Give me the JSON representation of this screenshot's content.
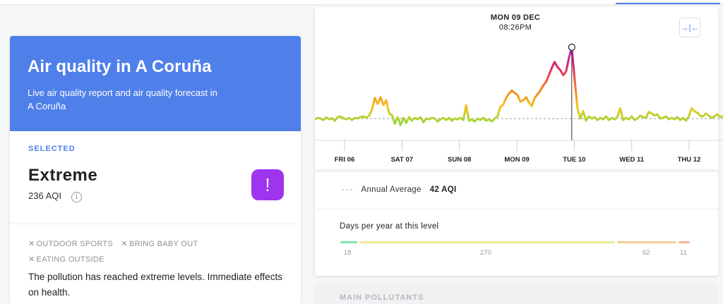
{
  "city": {
    "title": "Air quality in A Coruña",
    "subtitle": "Live air quality report and air quality forecast in A Coruña"
  },
  "selected": {
    "label": "SELECTED",
    "level": "Extreme",
    "aqi_text": "236 AQI",
    "badge_glyph": "!",
    "badge_color": "#9e34ee",
    "tags": [
      "OUTDOOR SPORTS",
      "BRING BABY OUT",
      "EATING OUTSIDE"
    ],
    "description": "The pollution has reached extreme levels. Immediate effects on health."
  },
  "chart": {
    "tooltip_day": "MON 09 DEC",
    "tooltip_time": "08:26PM",
    "collapse_icon": "collapse-horizontal-icon"
  },
  "chart_data": {
    "type": "line",
    "x_labels": [
      "FRI 06",
      "SAT 07",
      "SUN 08",
      "MON 09",
      "TUE 10",
      "WED 11",
      "THU 12"
    ],
    "annual_average": 42,
    "selected_point": {
      "label": "MON 09 DEC 08:26PM",
      "aqi": 236
    },
    "series": [
      {
        "values": [
          40,
          44,
          42,
          38,
          45,
          40,
          43,
          36,
          46,
          48,
          43,
          40,
          44,
          38,
          44,
          42,
          46,
          48,
          44,
          50,
          66,
          98,
          82,
          100,
          78,
          92,
          56,
          52,
          28,
          46,
          24,
          44,
          30,
          46,
          36,
          44,
          40,
          46,
          32,
          42,
          40,
          44,
          42,
          34,
          40,
          44,
          38,
          44,
          36,
          42,
          40,
          44,
          38,
          78,
          36,
          40,
          34,
          42,
          38,
          44,
          36,
          40,
          34,
          42,
          48,
          74,
          80,
          98,
          110,
          118,
          112,
          106,
          88,
          92,
          100,
          86,
          76,
          98,
          108,
          118,
          132,
          142,
          160,
          180,
          196,
          182,
          174,
          160,
          170,
          206,
          236,
          150,
          70,
          42,
          62,
          36,
          48,
          42,
          46,
          38,
          44,
          40,
          48,
          38,
          44,
          40,
          46,
          70,
          38,
          44,
          40,
          48,
          38,
          42,
          50,
          46,
          44,
          60,
          56,
          50,
          54,
          42,
          44,
          48,
          40,
          44,
          40,
          46,
          38,
          44,
          36,
          48,
          70,
          62,
          58,
          50,
          48,
          56,
          50,
          44,
          48,
          54,
          46,
          48
        ]
      }
    ],
    "ylim": [
      0,
      260
    ]
  },
  "annual_average": {
    "label": "Annual Average",
    "value": "42 AQI"
  },
  "days_per_year": {
    "title": "Days per year at this level",
    "segments": [
      {
        "days": "18",
        "color": "#7ee5b0"
      },
      {
        "days": "270",
        "color": "#e9ea98"
      },
      {
        "days": "62",
        "color": "#f6ce98"
      },
      {
        "days": "11",
        "color": "#f6b49e"
      }
    ]
  },
  "pollutants": {
    "label": "MAIN POLLUTANTS"
  }
}
